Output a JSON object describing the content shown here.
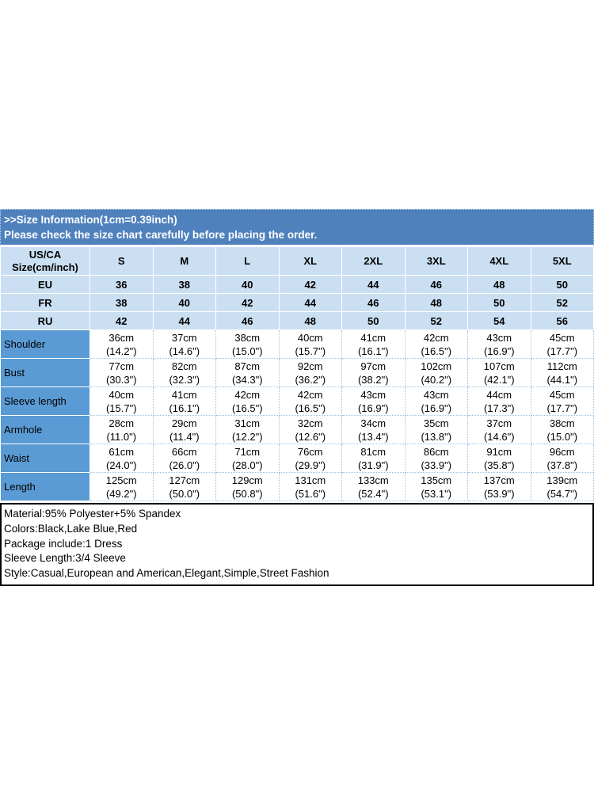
{
  "banner": {
    "line1": ">>Size Information(1cm=0.39inch)",
    "line2": "Please check the size chart carefully before placing the order."
  },
  "size_table": {
    "corner_label_line1": "US/CA",
    "corner_label_line2": "Size(cm/inch)",
    "size_columns": [
      "S",
      "M",
      "L",
      "XL",
      "2XL",
      "3XL",
      "4XL",
      "5XL"
    ],
    "region_rows": [
      {
        "label": "EU",
        "values": [
          "36",
          "38",
          "40",
          "42",
          "44",
          "46",
          "48",
          "50"
        ]
      },
      {
        "label": "FR",
        "values": [
          "38",
          "40",
          "42",
          "44",
          "46",
          "48",
          "50",
          "52"
        ]
      },
      {
        "label": "RU",
        "values": [
          "42",
          "44",
          "46",
          "48",
          "50",
          "52",
          "54",
          "56"
        ]
      }
    ],
    "measurement_rows": [
      {
        "label": "Shoulder",
        "cm": [
          "36cm",
          "37cm",
          "38cm",
          "40cm",
          "41cm",
          "42cm",
          "43cm",
          "45cm"
        ],
        "inch": [
          "(14.2\")",
          "(14.6\")",
          "(15.0\")",
          "(15.7\")",
          "(16.1\")",
          "(16.5\")",
          "(16.9\")",
          "(17.7\")"
        ]
      },
      {
        "label": "Bust",
        "cm": [
          "77cm",
          "82cm",
          "87cm",
          "92cm",
          "97cm",
          "102cm",
          "107cm",
          "112cm"
        ],
        "inch": [
          "(30.3\")",
          "(32.3\")",
          "(34.3\")",
          "(36.2\")",
          "(38.2\")",
          "(40.2\")",
          "(42.1\")",
          "(44.1\")"
        ]
      },
      {
        "label": "Sleeve length",
        "cm": [
          "40cm",
          "41cm",
          "42cm",
          "42cm",
          "43cm",
          "43cm",
          "44cm",
          "45cm"
        ],
        "inch": [
          "(15.7\")",
          "(16.1\")",
          "(16.5\")",
          "(16.5\")",
          "(16.9\")",
          "(16.9\")",
          "(17.3\")",
          "(17.7\")"
        ]
      },
      {
        "label": "Armhole",
        "cm": [
          "28cm",
          "29cm",
          "31cm",
          "32cm",
          "34cm",
          "35cm",
          "37cm",
          "38cm"
        ],
        "inch": [
          "(11.0\")",
          "(11.4\")",
          "(12.2\")",
          "(12.6\")",
          "(13.4\")",
          "(13.8\")",
          "(14.6\")",
          "(15.0\")"
        ]
      },
      {
        "label": "Waist",
        "cm": [
          "61cm",
          "66cm",
          "71cm",
          "76cm",
          "81cm",
          "86cm",
          "91cm",
          "96cm"
        ],
        "inch": [
          "(24.0\")",
          "(26.0\")",
          "(28.0\")",
          "(29.9\")",
          "(31.9\")",
          "(33.9\")",
          "(35.8\")",
          "(37.8\")"
        ]
      },
      {
        "label": "Length",
        "cm": [
          "125cm",
          "127cm",
          "129cm",
          "131cm",
          "133cm",
          "135cm",
          "137cm",
          "139cm"
        ],
        "inch": [
          "(49.2\")",
          "(50.0\")",
          "(50.8\")",
          "(51.6\")",
          "(52.4\")",
          "(53.1\")",
          "(53.9\")",
          "(54.7\")"
        ]
      }
    ]
  },
  "info": {
    "lines": [
      "Material:95% Polyester+5% Spandex",
      "Colors:Black,Lake Blue,Red",
      "Package include:1 Dress",
      "Sleeve Length:3/4 Sleeve",
      "Style:Casual,European and American,Elegant,Simple,Street Fashion"
    ]
  },
  "colors": {
    "banner_blue": "#4f81bd",
    "light_row_blue": "#cbdff2",
    "label_column_blue": "#5b9bd5",
    "grid_line_blue": "#9cc1e3"
  }
}
